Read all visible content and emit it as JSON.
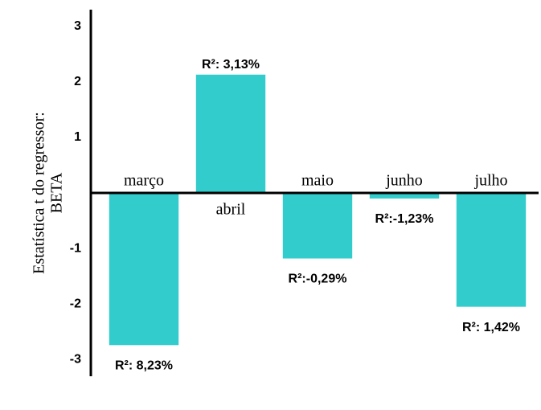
{
  "chart_data": {
    "type": "bar",
    "y_label": [
      "Estatística t  do regressor:",
      "BETA"
    ],
    "categories": [
      "março",
      "abril",
      "maio",
      "junho",
      "julho"
    ],
    "values": [
      -2.74,
      2.13,
      -1.18,
      -0.1,
      -2.05
    ],
    "annotations": [
      "R²: 8,23%",
      "R²: 3,13%",
      "R²:-0,29%",
      "R²:-1,23%",
      "R²: 1,42%"
    ],
    "color": "#33cccc",
    "ylim": [
      -3.3,
      3.3
    ],
    "yticks": [
      -3,
      -2,
      -1,
      1,
      2,
      3
    ]
  }
}
